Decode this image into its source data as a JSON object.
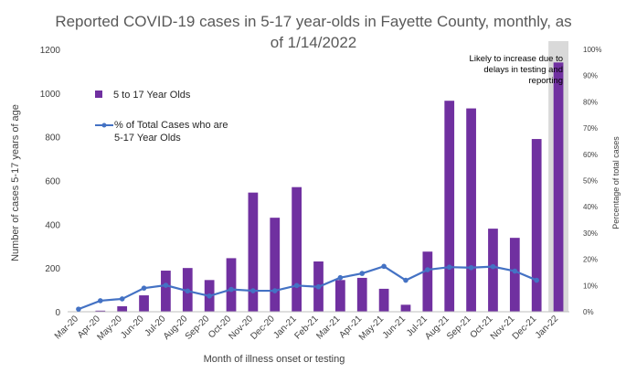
{
  "chart_data": {
    "type": "bar",
    "title_lines": [
      "Reported COVID-19 cases in 5-17 year-olds in Fayette County, monthly, as",
      "of 1/14/2022"
    ],
    "xlabel": "Month of illness onset or testing",
    "ylabel": "Number of cases 5-17 years of age",
    "y2label": "Percentage of total cases",
    "ylim": [
      0,
      1200
    ],
    "y2lim": [
      0,
      1
    ],
    "yticks": [
      "0",
      "200",
      "400",
      "600",
      "800",
      "1000",
      "1200"
    ],
    "y2ticks": [
      "0%",
      "10%",
      "20%",
      "30%",
      "40%",
      "50%",
      "60%",
      "70%",
      "80%",
      "90%",
      "100%"
    ],
    "categories": [
      "Mar-20",
      "Apr-20",
      "May-20",
      "Jun-20",
      "Jul-20",
      "Aug-20",
      "Sep-20",
      "Oct-20",
      "Nov-20",
      "Dec-20",
      "Jan-21",
      "Feb-21",
      "Mar-21",
      "Apr-21",
      "May-21",
      "Jun-21",
      "Jul-21",
      "Aug-21",
      "Sep-21",
      "Oct-21",
      "Nov-21",
      "Dec-21",
      "Jan-22"
    ],
    "series": [
      {
        "name": "5 to 17 Year Olds",
        "kind": "bar",
        "axis": "left",
        "color": "#7030a0",
        "values": [
          2,
          5,
          25,
          75,
          188,
          200,
          145,
          245,
          545,
          430,
          570,
          230,
          145,
          155,
          105,
          32,
          275,
          965,
          930,
          380,
          338,
          790,
          1140
        ]
      },
      {
        "name": "% of Total Cases who are 5-17 Year Olds",
        "kind": "line",
        "axis": "right",
        "color": "#4472c4",
        "values": [
          0.01,
          0.042,
          0.049,
          0.09,
          0.101,
          0.079,
          0.06,
          0.085,
          0.08,
          0.08,
          0.1,
          0.095,
          0.13,
          0.146,
          0.173,
          0.12,
          0.16,
          0.17,
          0.168,
          0.172,
          0.155,
          0.12,
          null
        ]
      }
    ],
    "highlight": {
      "category": "Jan-22",
      "color": "#d9d9d9"
    },
    "annotation_lines": [
      "Likely to increase due to",
      "delays in testing and",
      "reporting"
    ],
    "legend_position": "upper-left",
    "grid": false
  }
}
